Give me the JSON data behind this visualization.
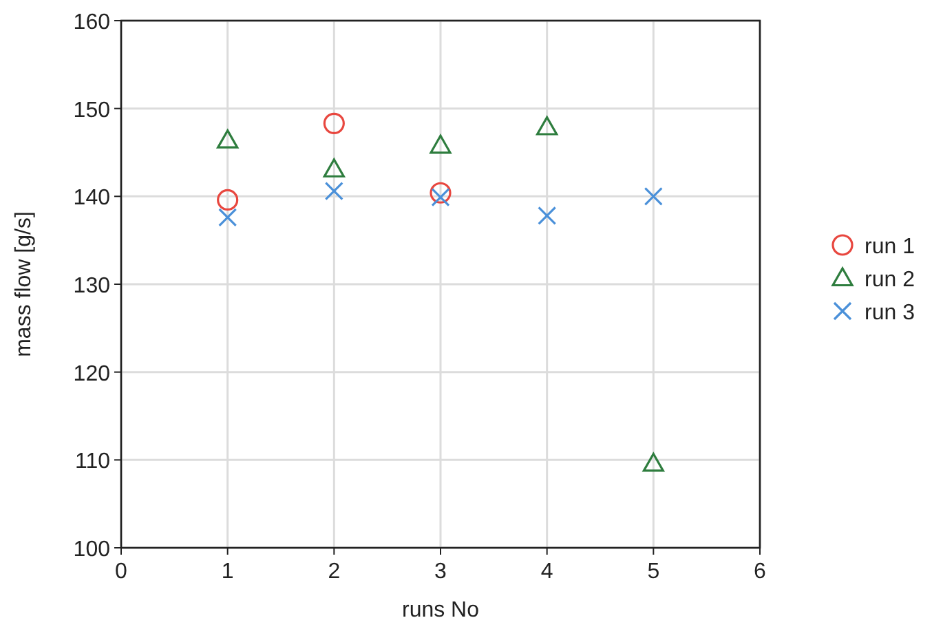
{
  "chart_data": {
    "type": "scatter",
    "xlabel": "runs No",
    "ylabel": "mass flow [g/s]",
    "xlim": [
      0,
      6
    ],
    "xticks": [
      0,
      1,
      2,
      3,
      4,
      5,
      6
    ],
    "ylim": [
      100,
      160
    ],
    "yticks": [
      100,
      110,
      120,
      130,
      140,
      150,
      160
    ],
    "grid": true,
    "legend": "right",
    "series": [
      {
        "name": "run 1",
        "color": "#e8473f",
        "marker": "circle",
        "x": [
          1,
          2,
          3
        ],
        "values": [
          139.6,
          148.3,
          140.4
        ]
      },
      {
        "name": "run 2",
        "color": "#2e7d3e",
        "marker": "triangle",
        "x": [
          1,
          2,
          3,
          4,
          5
        ],
        "values": [
          146.4,
          143.1,
          145.8,
          147.9,
          109.6
        ]
      },
      {
        "name": "run 3",
        "color": "#4a90d9",
        "marker": "cross",
        "x": [
          1,
          2,
          3,
          4,
          5
        ],
        "values": [
          137.6,
          140.6,
          139.9,
          137.8,
          140
        ]
      }
    ]
  }
}
